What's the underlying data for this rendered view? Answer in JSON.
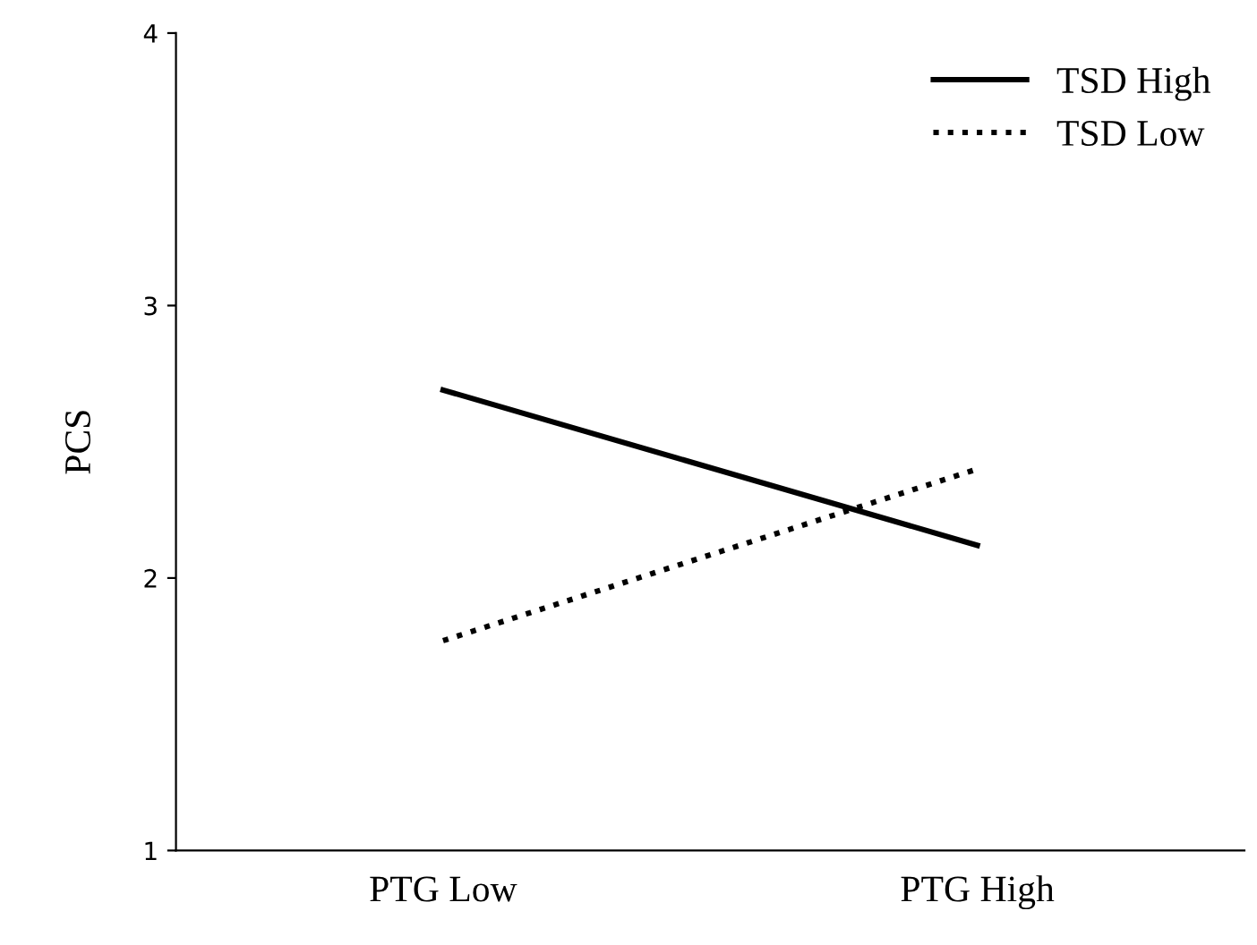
{
  "chart_data": {
    "type": "line",
    "ylabel": "PCS",
    "categories": [
      "PTG Low",
      "PTG High"
    ],
    "series": [
      {
        "name": "TSD High",
        "color": "#000000",
        "values": [
          2.69,
          2.12
        ],
        "line_style": "solid"
      },
      {
        "name": "TSD Low",
        "color": "#000000",
        "values": [
          1.77,
          2.4
        ],
        "line_style": "dotted"
      }
    ],
    "ylim": [
      1,
      4
    ],
    "yticks": [
      1,
      2,
      3,
      4
    ],
    "legend": "top right",
    "grid": false,
    "marker": "none"
  }
}
